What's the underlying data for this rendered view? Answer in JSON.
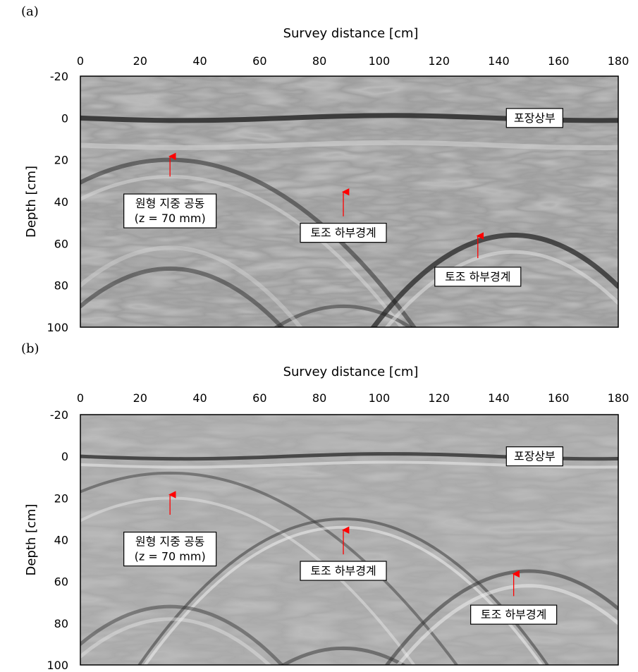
{
  "chart_data": [
    {
      "type": "heatmap",
      "panel_label": "(a)",
      "xlabel": "Survey distance [cm]",
      "ylabel": "Depth [cm]",
      "xlim": [
        0,
        180
      ],
      "ylim": [
        -20,
        100
      ],
      "x_ticks": [
        "0",
        "20",
        "40",
        "60",
        "80",
        "100",
        "120",
        "140",
        "160",
        "180"
      ],
      "y_ticks": [
        "-20",
        "0",
        "20",
        "40",
        "60",
        "80",
        "100"
      ],
      "annotations": [
        {
          "lines": [
            "포장상부"
          ],
          "arrow": null,
          "box": [
            152,
            0
          ]
        },
        {
          "lines": [
            "원형 지중 공동",
            "(z = 70 mm)"
          ],
          "arrow": [
            30,
            17,
            30,
            28
          ],
          "box": [
            30,
            37
          ]
        },
        {
          "lines": [
            "토조 하부경계"
          ],
          "arrow": [
            88,
            34,
            88,
            47
          ],
          "box": [
            88,
            51
          ]
        },
        {
          "lines": [
            "토조 하부경계"
          ],
          "arrow": [
            133,
            55,
            133,
            67
          ],
          "box": [
            133,
            72
          ]
        }
      ]
    },
    {
      "type": "heatmap",
      "panel_label": "(b)",
      "xlabel": "Survey distance [cm]",
      "ylabel": "Depth [cm]",
      "xlim": [
        0,
        180
      ],
      "ylim": [
        -20,
        100
      ],
      "x_ticks": [
        "0",
        "20",
        "40",
        "60",
        "80",
        "100",
        "120",
        "140",
        "160",
        "180"
      ],
      "y_ticks": [
        "-20",
        "0",
        "20",
        "40",
        "60",
        "80",
        "100"
      ],
      "annotations": [
        {
          "lines": [
            "포장상부"
          ],
          "arrow": null,
          "box": [
            152,
            0
          ]
        },
        {
          "lines": [
            "원형 지중 공동",
            "(z = 70 mm)"
          ],
          "arrow": [
            30,
            17,
            30,
            28
          ],
          "box": [
            30,
            37
          ]
        },
        {
          "lines": [
            "토조 하부경계"
          ],
          "arrow": [
            88,
            34,
            88,
            47
          ],
          "box": [
            88,
            51
          ]
        },
        {
          "lines": [
            "토조 하부경계"
          ],
          "arrow": [
            145,
            55,
            145,
            67
          ],
          "box": [
            145,
            72
          ]
        }
      ]
    }
  ]
}
